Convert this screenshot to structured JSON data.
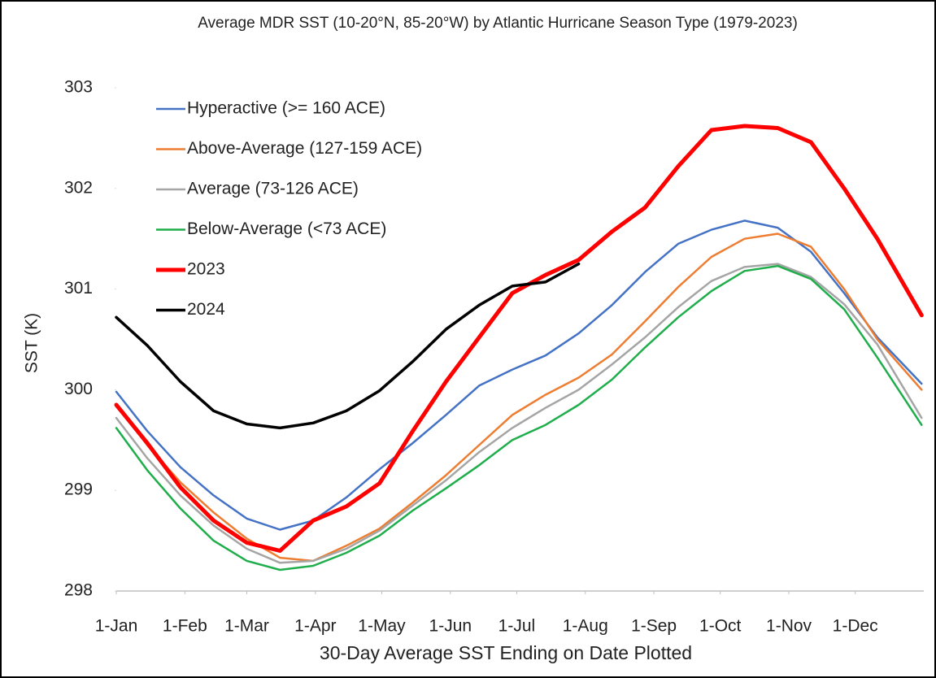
{
  "chart_data": {
    "type": "line",
    "title": "Average MDR SST (10-20°N, 85-20°W) by Atlantic Hurricane Season Type (1979-2023)",
    "x_label": "30-Day Average SST Ending on Date Plotted",
    "y_label": "SST (K)",
    "x": [
      1,
      15,
      30,
      45,
      60,
      75,
      90,
      105,
      120,
      135,
      150,
      165,
      180,
      195,
      210,
      225,
      240,
      255,
      270,
      285,
      300,
      315,
      330,
      345,
      365
    ],
    "xlim": [
      1,
      366
    ],
    "xticks": [
      {
        "value": 1,
        "label": "1-Jan"
      },
      {
        "value": 32,
        "label": "1-Feb"
      },
      {
        "value": 60,
        "label": "1-Mar"
      },
      {
        "value": 91,
        "label": "1-Apr"
      },
      {
        "value": 121,
        "label": "1-May"
      },
      {
        "value": 152,
        "label": "1-Jun"
      },
      {
        "value": 182,
        "label": "1-Jul"
      },
      {
        "value": 213,
        "label": "1-Aug"
      },
      {
        "value": 244,
        "label": "1-Sep"
      },
      {
        "value": 274,
        "label": "1-Oct"
      },
      {
        "value": 305,
        "label": "1-Nov"
      },
      {
        "value": 335,
        "label": "1-Dec"
      }
    ],
    "ylim": [
      298,
      303
    ],
    "yticks": [
      298,
      299,
      300,
      301,
      302,
      303
    ],
    "legend": "upper left",
    "series": [
      {
        "name": "Hyperactive (>= 160 ACE)",
        "color": "#4472c4",
        "values": [
          299.98,
          299.59,
          299.23,
          298.95,
          298.72,
          298.61,
          298.7,
          298.93,
          299.21,
          299.47,
          299.75,
          300.04,
          300.2,
          300.34,
          300.56,
          300.84,
          301.17,
          301.45,
          301.59,
          301.68,
          301.61,
          301.37,
          300.96,
          300.52,
          300.06
        ]
      },
      {
        "name": "Above-Average (127-159 ACE)",
        "color": "#ed7d31",
        "values": [
          299.85,
          299.45,
          299.08,
          298.78,
          298.52,
          298.33,
          298.3,
          298.45,
          298.62,
          298.88,
          299.15,
          299.45,
          299.75,
          299.95,
          300.12,
          300.35,
          300.68,
          301.02,
          301.32,
          301.5,
          301.55,
          301.42,
          301.0,
          300.5,
          300.0
        ]
      },
      {
        "name": "Average (73-126 ACE)",
        "color": "#a5a5a5",
        "values": [
          299.72,
          299.32,
          298.95,
          298.65,
          298.42,
          298.28,
          298.3,
          298.42,
          298.6,
          298.85,
          299.1,
          299.38,
          299.62,
          299.82,
          300.0,
          300.25,
          300.52,
          300.82,
          301.08,
          301.22,
          301.25,
          301.12,
          300.85,
          300.45,
          299.72
        ]
      },
      {
        "name": "Below-Average (<73 ACE)",
        "color": "#1fae4b",
        "values": [
          299.62,
          299.2,
          298.82,
          298.5,
          298.3,
          298.21,
          298.25,
          298.38,
          298.55,
          298.8,
          299.02,
          299.25,
          299.5,
          299.65,
          299.85,
          300.1,
          300.42,
          300.72,
          300.98,
          301.18,
          301.23,
          301.1,
          300.8,
          300.32,
          299.65
        ]
      },
      {
        "name": "2023",
        "color": "#ff0000",
        "values": [
          299.85,
          299.47,
          299.03,
          298.7,
          298.48,
          298.4,
          298.7,
          298.84,
          299.07,
          299.59,
          300.08,
          300.52,
          300.96,
          301.14,
          301.29,
          301.57,
          301.81,
          302.22,
          302.58,
          302.62,
          302.6,
          302.46,
          302.0,
          301.5,
          300.74
        ]
      },
      {
        "name": "2024",
        "color": "#000000",
        "values": [
          300.72,
          300.44,
          300.08,
          299.79,
          299.66,
          299.62,
          299.67,
          299.79,
          299.99,
          300.28,
          300.6,
          300.84,
          301.03,
          301.07,
          301.25,
          null,
          null,
          null,
          null,
          null,
          null,
          null,
          null,
          null,
          null
        ]
      }
    ]
  }
}
